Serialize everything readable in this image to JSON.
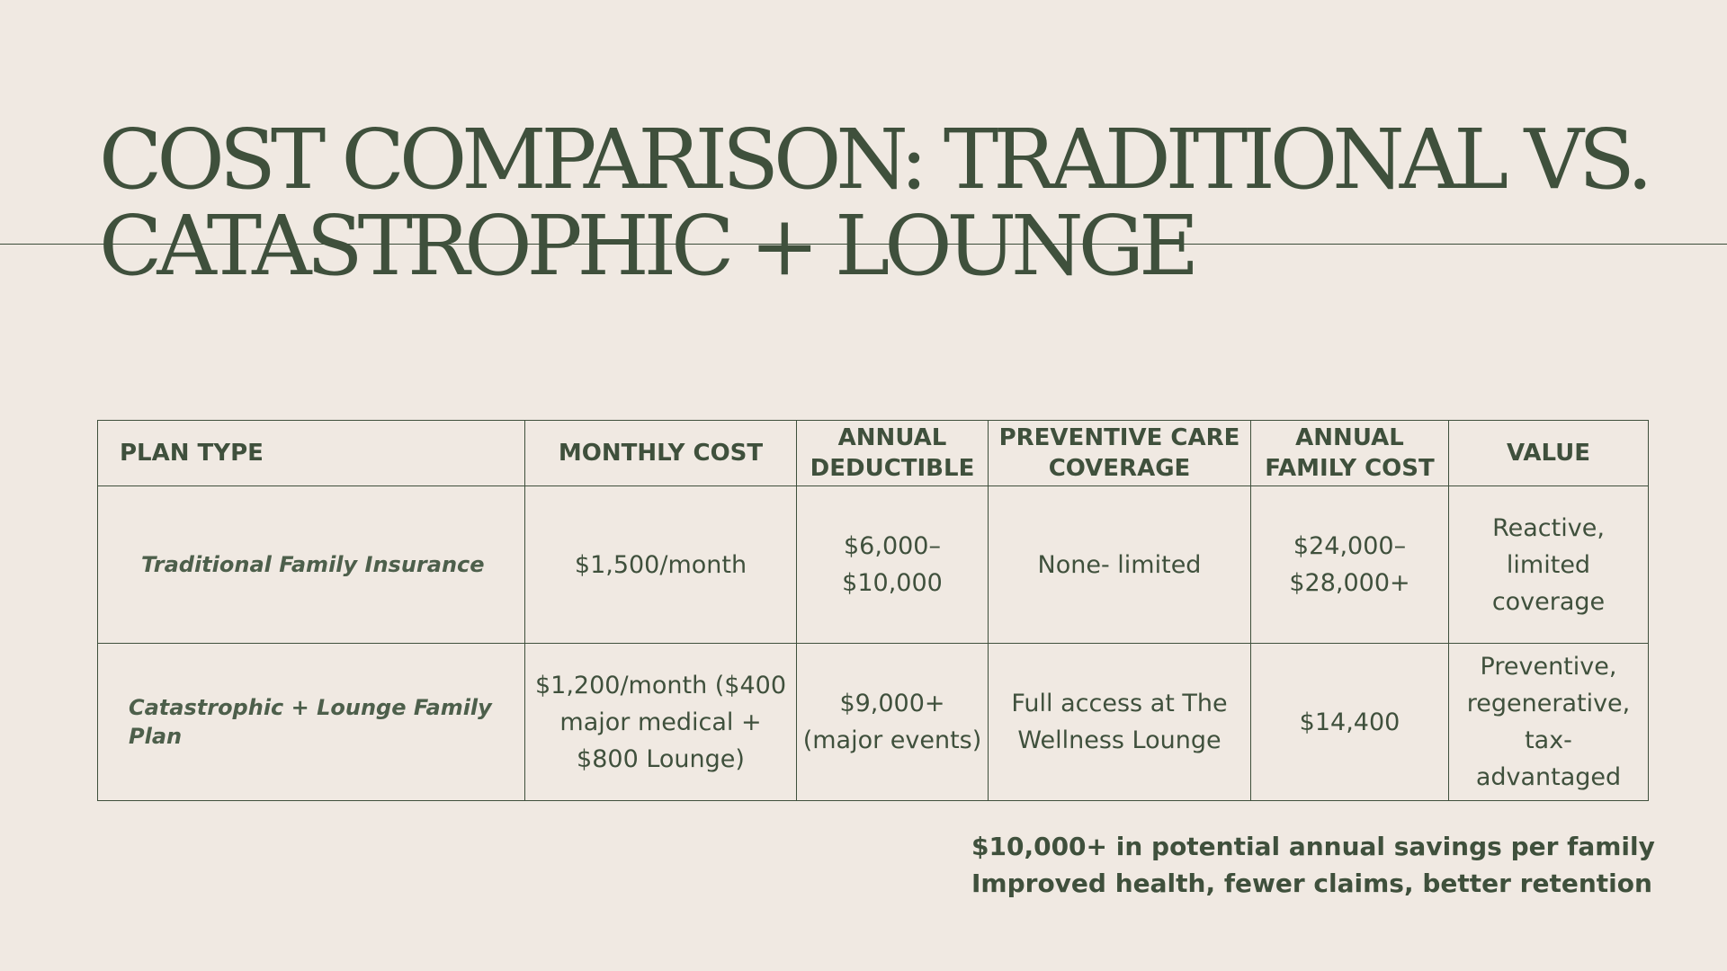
{
  "slide": {
    "title_line1": "COST COMPARISON: TRADITIONAL VS.",
    "title_line2": "CATASTROPHIC + LOUNGE"
  },
  "table": {
    "headers": [
      "PLAN TYPE",
      "MONTHLY COST",
      "ANNUAL DEDUCTIBLE",
      "PREVENTIVE CARE COVERAGE",
      "ANNUAL FAMILY COST",
      "VALUE"
    ],
    "rows": [
      [
        "Traditional Family Insurance",
        "$1,500/month",
        "$6,000–$10,000",
        "None- limited",
        "$24,000–$28,000+",
        "Reactive, limited coverage"
      ],
      [
        "Catastrophic + Lounge Family Plan",
        "$1,200/month ($400 major medical + $800 Lounge)",
        "$9,000+ (major events)",
        "Full access at The Wellness Lounge",
        "$14,400",
        "Preventive, regenerative, tax-advantaged"
      ]
    ]
  },
  "summary": {
    "line1": "$10,000+ in potential annual savings per family",
    "line2": "Improved health, fewer claims, better retention"
  },
  "colors": {
    "background": "#f0e9e2",
    "text": "#3f503c",
    "plan_label": "#4d5f4b"
  }
}
